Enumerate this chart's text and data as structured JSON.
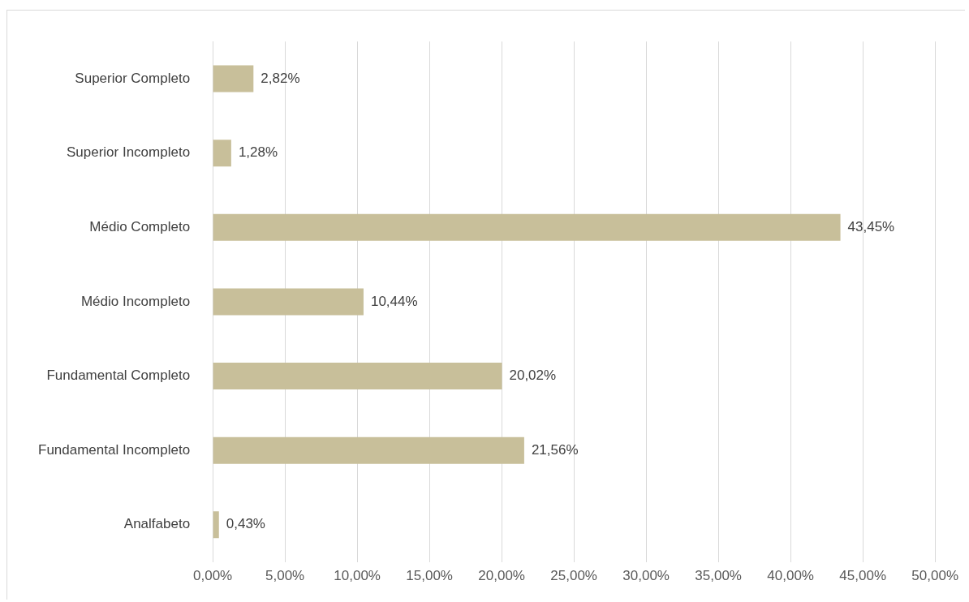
{
  "chart_data": {
    "type": "bar",
    "orientation": "horizontal",
    "categories": [
      "Superior Completo",
      "Superior Incompleto",
      "Médio Completo",
      "Médio Incompleto",
      "Fundamental Completo",
      "Fundamental Incompleto",
      "Analfabeto"
    ],
    "values": [
      2.82,
      1.28,
      43.45,
      10.44,
      20.02,
      21.56,
      0.43
    ],
    "value_labels": [
      "2,82%",
      "1,28%",
      "43,45%",
      "10,44%",
      "20,02%",
      "21,56%",
      "0,43%"
    ],
    "color": "#c8bf9a",
    "xlim": [
      0,
      50
    ],
    "xticks": [
      {
        "value": 0,
        "label": "0,00%"
      },
      {
        "value": 5,
        "label": "5,00%"
      },
      {
        "value": 10,
        "label": "10,00%"
      },
      {
        "value": 15,
        "label": "15,00%"
      },
      {
        "value": 20,
        "label": "20,00%"
      },
      {
        "value": 25,
        "label": "25,00%"
      },
      {
        "value": 30,
        "label": "30,00%"
      },
      {
        "value": 35,
        "label": "35,00%"
      },
      {
        "value": 40,
        "label": "40,00%"
      },
      {
        "value": 45,
        "label": "45,00%"
      },
      {
        "value": 50,
        "label": "50,00%"
      }
    ],
    "grid": "x"
  }
}
